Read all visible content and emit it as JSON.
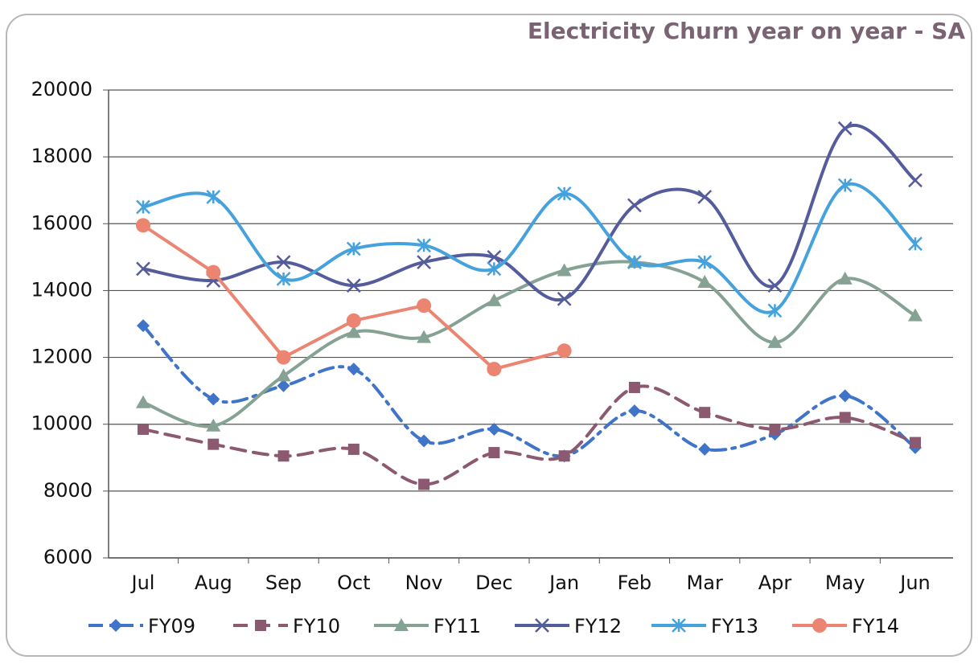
{
  "chart_data": {
    "type": "line",
    "title": "Electricity Churn year on year - SA",
    "categories": [
      "Jul",
      "Aug",
      "Sep",
      "Oct",
      "Nov",
      "Dec",
      "Jan",
      "Feb",
      "Mar",
      "Apr",
      "May",
      "Jun"
    ],
    "ylim": [
      6000,
      20000
    ],
    "yticks": [
      6000,
      8000,
      10000,
      12000,
      14000,
      16000,
      18000,
      20000
    ],
    "grid": true,
    "legend": "bottom",
    "series": [
      {
        "name": "FY09",
        "color": "#3f74c8",
        "line_style": "dashdot",
        "marker": "diamond",
        "smooth": true,
        "values": [
          12950,
          10750,
          11150,
          11650,
          9500,
          9850,
          9050,
          10400,
          9250,
          9700,
          10850,
          9300
        ]
      },
      {
        "name": "FY10",
        "color": "#8c5a70",
        "line_style": "dashed",
        "marker": "square",
        "smooth": true,
        "values": [
          9850,
          9400,
          9050,
          9250,
          8200,
          9150,
          9050,
          11100,
          10350,
          9850,
          10200,
          9450
        ]
      },
      {
        "name": "FY11",
        "color": "#86a294",
        "line_style": "solid",
        "marker": "triangle",
        "smooth": true,
        "values": [
          10650,
          9950,
          11450,
          12750,
          12600,
          13700,
          14600,
          14850,
          14250,
          12450,
          14350,
          13250
        ]
      },
      {
        "name": "FY12",
        "color": "#545c9c",
        "line_style": "solid",
        "marker": "x",
        "smooth": true,
        "values": [
          14650,
          14300,
          14850,
          14150,
          14850,
          15000,
          13750,
          16550,
          16800,
          14150,
          18850,
          17300
        ]
      },
      {
        "name": "FY13",
        "color": "#45a2dc",
        "line_style": "solid",
        "marker": "star",
        "smooth": true,
        "values": [
          16500,
          16800,
          14350,
          15250,
          15350,
          14650,
          16900,
          14850,
          14850,
          13400,
          17150,
          15400
        ]
      },
      {
        "name": "FY14",
        "color": "#eb8470",
        "line_style": "solid",
        "marker": "circle",
        "smooth": false,
        "values": [
          15950,
          14550,
          12000,
          13100,
          13550,
          11650,
          12200,
          null,
          null,
          null,
          null,
          null
        ]
      }
    ]
  }
}
